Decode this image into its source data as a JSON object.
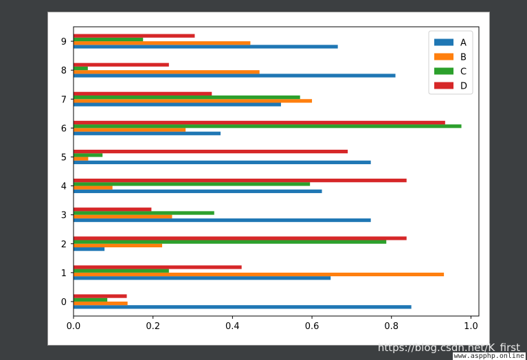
{
  "chart_data": {
    "type": "bar",
    "orientation": "horizontal",
    "categories": [
      "0",
      "1",
      "2",
      "3",
      "4",
      "5",
      "6",
      "7",
      "8",
      "9"
    ],
    "series": [
      {
        "name": "A",
        "color": "#1f77b4",
        "values": [
          0.85,
          0.647,
          0.078,
          0.748,
          0.625,
          0.748,
          0.37,
          0.522,
          0.81,
          0.665
        ]
      },
      {
        "name": "B",
        "color": "#ff7f0e",
        "values": [
          0.136,
          0.932,
          0.223,
          0.248,
          0.098,
          0.037,
          0.282,
          0.6,
          0.468,
          0.445
        ]
      },
      {
        "name": "C",
        "color": "#2ca02c",
        "values": [
          0.085,
          0.24,
          0.787,
          0.354,
          0.595,
          0.073,
          0.976,
          0.57,
          0.036,
          0.175
        ]
      },
      {
        "name": "D",
        "color": "#d62728",
        "values": [
          0.134,
          0.423,
          0.838,
          0.196,
          0.838,
          0.69,
          0.935,
          0.348,
          0.24,
          0.305
        ]
      }
    ],
    "xlim": [
      0,
      1.02
    ],
    "xticks": [
      "0.0",
      "0.2",
      "0.4",
      "0.6",
      "0.8",
      "1.0"
    ],
    "xtick_values": [
      0,
      0.2,
      0.4,
      0.6,
      0.8,
      1.0
    ],
    "grid": false,
    "legend": "top-right"
  },
  "watermark": {
    "main": "https://blog.csdn.net/K_first",
    "site": "www.aspphp.online"
  }
}
